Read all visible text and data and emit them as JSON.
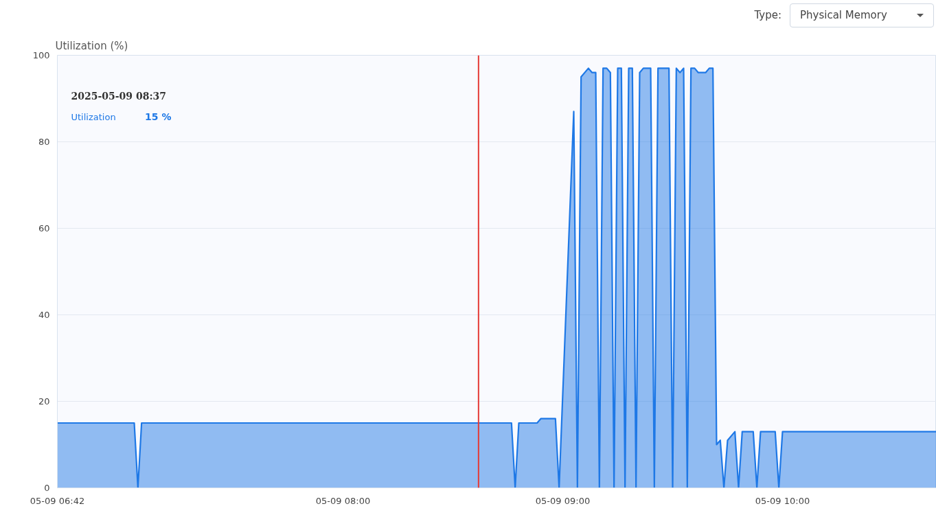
{
  "chart_data": {
    "type": "area",
    "ylabel": "Utilization (%)",
    "x": [
      "2025-05-09T06:42",
      "2025-05-09T07:03",
      "2025-05-09T07:04",
      "2025-05-09T07:05",
      "2025-05-09T08:46",
      "2025-05-09T08:47",
      "2025-05-09T08:48",
      "2025-05-09T08:53",
      "2025-05-09T08:54",
      "2025-05-09T08:58",
      "2025-05-09T08:59",
      "2025-05-09T09:03",
      "2025-05-09T09:04",
      "2025-05-09T09:05",
      "2025-05-09T09:07",
      "2025-05-09T09:08",
      "2025-05-09T09:09",
      "2025-05-09T09:10",
      "2025-05-09T09:11",
      "2025-05-09T09:12",
      "2025-05-09T09:13",
      "2025-05-09T09:14",
      "2025-05-09T09:15",
      "2025-05-09T09:16",
      "2025-05-09T09:17",
      "2025-05-09T09:18",
      "2025-05-09T09:19",
      "2025-05-09T09:20",
      "2025-05-09T09:21",
      "2025-05-09T09:22",
      "2025-05-09T09:24",
      "2025-05-09T09:25",
      "2025-05-09T09:26",
      "2025-05-09T09:29",
      "2025-05-09T09:30",
      "2025-05-09T09:31",
      "2025-05-09T09:32",
      "2025-05-09T09:33",
      "2025-05-09T09:34",
      "2025-05-09T09:35",
      "2025-05-09T09:36",
      "2025-05-09T09:37",
      "2025-05-09T09:39",
      "2025-05-09T09:40",
      "2025-05-09T09:41",
      "2025-05-09T09:42",
      "2025-05-09T09:43",
      "2025-05-09T09:44",
      "2025-05-09T09:45",
      "2025-05-09T09:47",
      "2025-05-09T09:48",
      "2025-05-09T09:49",
      "2025-05-09T09:52",
      "2025-05-09T09:53",
      "2025-05-09T09:54",
      "2025-05-09T09:58",
      "2025-05-09T09:59",
      "2025-05-09T10:00",
      "2025-05-09T10:42"
    ],
    "series": [
      {
        "name": "Utilization",
        "color": "#1e78e6",
        "values": [
          15,
          15,
          0,
          15,
          15,
          0,
          15,
          15,
          16,
          16,
          0,
          87,
          0,
          95,
          97,
          96,
          96,
          0,
          97,
          97,
          96,
          0,
          97,
          97,
          0,
          97,
          97,
          0,
          96,
          97,
          97,
          0,
          97,
          97,
          0,
          97,
          96,
          97,
          0,
          97,
          97,
          96,
          96,
          97,
          97,
          10,
          11,
          0,
          11,
          13,
          0,
          13,
          13,
          0,
          13,
          13,
          0,
          13,
          13
        ]
      }
    ],
    "xlim": [
      "2025-05-09T06:42",
      "2025-05-09T10:42"
    ],
    "xticks": [
      {
        "value": "2025-05-09T06:42",
        "label": "05-09 06:42"
      },
      {
        "value": "2025-05-09T08:00",
        "label": "05-09 08:00"
      },
      {
        "value": "2025-05-09T09:00",
        "label": "05-09 09:00"
      },
      {
        "value": "2025-05-09T10:00",
        "label": "05-09 10:00"
      }
    ],
    "ylim": [
      0,
      100
    ],
    "yticks": [
      0,
      20,
      40,
      60,
      80,
      100
    ],
    "grid": "y",
    "legend": "top left",
    "ref_lines": [
      {
        "axis": "x",
        "value": "2025-05-09T08:37",
        "color": "#e53935"
      }
    ],
    "annotations": [
      "Type:",
      "Physical Memory",
      "2025-05-09 08:37",
      "15 %"
    ]
  }
}
